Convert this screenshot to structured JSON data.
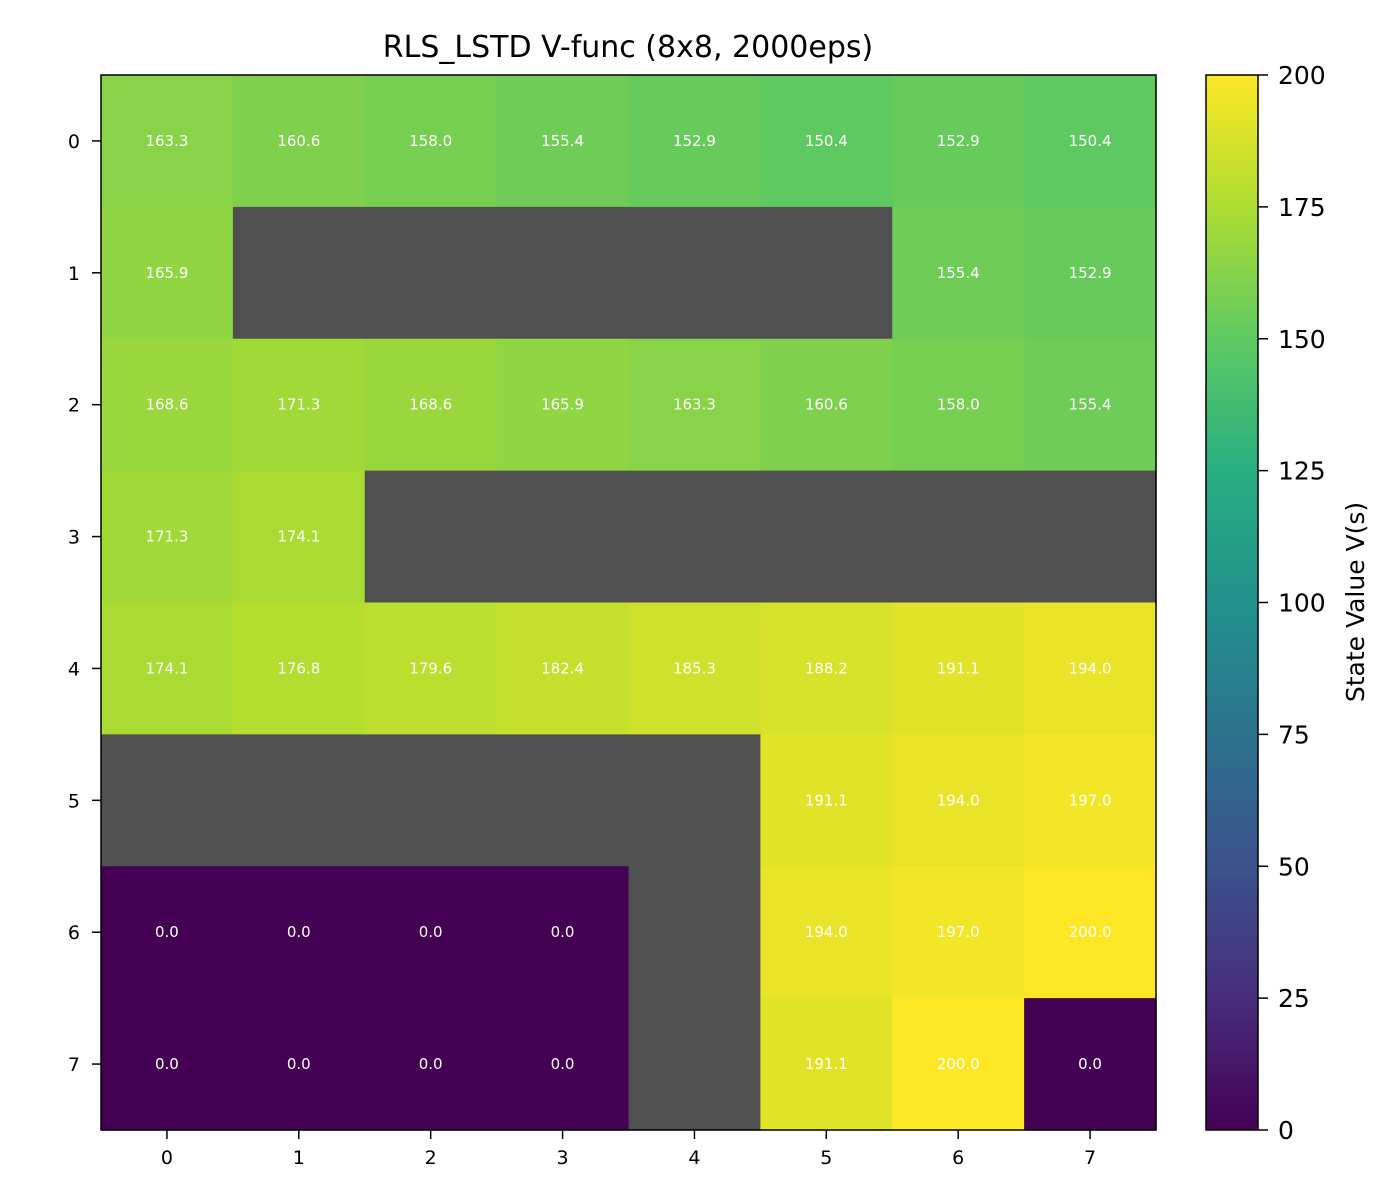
{
  "chart_data": {
    "type": "heatmap",
    "title": "RLS_LSTD V-func (8x8, 2000eps)",
    "xlabel": "",
    "ylabel": "",
    "x_ticks": [
      "0",
      "1",
      "2",
      "3",
      "4",
      "5",
      "6",
      "7"
    ],
    "y_ticks": [
      "0",
      "1",
      "2",
      "3",
      "4",
      "5",
      "6",
      "7"
    ],
    "colormap": "viridis",
    "vmin": 0,
    "vmax": 200,
    "wall_color": "#505050",
    "colorbar": {
      "label": "State Value V(s)",
      "ticks": [
        "0",
        "25",
        "50",
        "75",
        "100",
        "125",
        "150",
        "175",
        "200"
      ]
    },
    "values": [
      [
        163.3,
        160.6,
        158.0,
        155.4,
        152.9,
        150.4,
        152.9,
        150.4
      ],
      [
        165.9,
        null,
        null,
        null,
        null,
        null,
        155.4,
        152.9
      ],
      [
        168.6,
        171.3,
        168.6,
        165.9,
        163.3,
        160.6,
        158.0,
        155.4
      ],
      [
        171.3,
        174.1,
        null,
        null,
        null,
        null,
        null,
        null
      ],
      [
        174.1,
        176.8,
        179.6,
        182.4,
        185.3,
        188.2,
        191.1,
        194.0
      ],
      [
        null,
        null,
        null,
        null,
        null,
        191.1,
        194.0,
        197.0
      ],
      [
        0.0,
        0.0,
        0.0,
        0.0,
        null,
        194.0,
        197.0,
        200.0
      ],
      [
        0.0,
        0.0,
        0.0,
        0.0,
        null,
        191.1,
        200.0,
        0.0
      ]
    ],
    "labels": [
      [
        "163.3",
        "160.6",
        "158.0",
        "155.4",
        "152.9",
        "150.4",
        "152.9",
        "150.4"
      ],
      [
        "165.9",
        "",
        "",
        "",
        "",
        "",
        "155.4",
        "152.9"
      ],
      [
        "168.6",
        "171.3",
        "168.6",
        "165.9",
        "163.3",
        "160.6",
        "158.0",
        "155.4"
      ],
      [
        "171.3",
        "174.1",
        "",
        "",
        "",
        "",
        "",
        ""
      ],
      [
        "174.1",
        "176.8",
        "179.6",
        "182.4",
        "185.3",
        "188.2",
        "191.1",
        "194.0"
      ],
      [
        "",
        "",
        "",
        "",
        "",
        "191.1",
        "194.0",
        "197.0"
      ],
      [
        "0.0",
        "0.0",
        "0.0",
        "0.0",
        "",
        "194.0",
        "197.0",
        "200.0"
      ],
      [
        "0.0",
        "0.0",
        "0.0",
        "0.0",
        "",
        "191.1",
        "200.0",
        "0.0"
      ]
    ]
  }
}
